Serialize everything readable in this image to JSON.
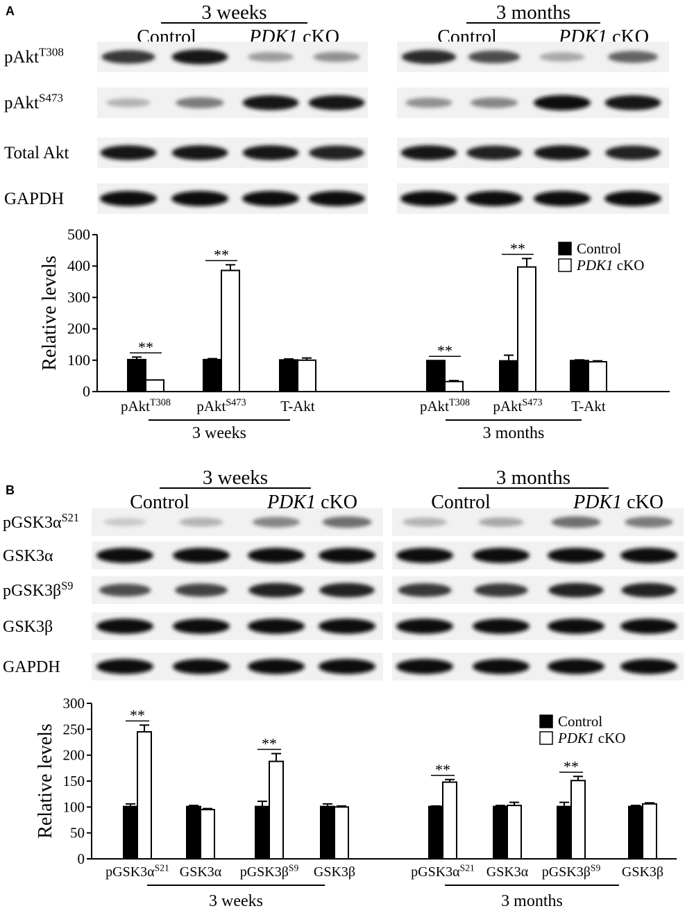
{
  "panels": [
    {
      "letter": "A",
      "blot": {
        "groups": [
          {
            "period": "3 weeks",
            "control_label": "Control",
            "cko_gene": "PDK1",
            "cko_suffix": " cKO"
          },
          {
            "period": "3 months",
            "control_label": "Control",
            "cko_gene": "PDK1",
            "cko_suffix": " cKO"
          }
        ],
        "rows": [
          {
            "base": "pAkt",
            "sup": "T308",
            "intensities": [
              [
                0.8,
                0.95,
                0.35,
                0.4
              ],
              [
                0.85,
                0.7,
                0.3,
                0.6
              ]
            ]
          },
          {
            "base": "pAkt",
            "sup": "S473",
            "intensities": [
              [
                0.25,
                0.5,
                0.95,
                0.95
              ],
              [
                0.4,
                0.45,
                1.0,
                0.95
              ]
            ]
          },
          {
            "base": "Total Akt",
            "sup": "",
            "intensities": [
              [
                0.95,
                0.95,
                0.95,
                0.9
              ],
              [
                0.95,
                0.9,
                0.95,
                0.9
              ]
            ]
          },
          {
            "base": "GAPDH",
            "sup": "",
            "intensities": [
              [
                1.0,
                1.0,
                1.0,
                1.0
              ],
              [
                1.0,
                1.0,
                1.0,
                1.0
              ]
            ]
          }
        ]
      },
      "chart_data": {
        "type": "bar",
        "ylabel": "Relative levels",
        "ylim": [
          0,
          500
        ],
        "yticks": [
          0,
          100,
          200,
          300,
          400,
          500
        ],
        "legend": {
          "position": "top-right",
          "control": "Control",
          "cko_gene": "PDK1",
          "cko_suffix": " cKO"
        },
        "groups": [
          {
            "label": "3 weeks",
            "categories": [
              {
                "base": "pAkt",
                "sup": "T308",
                "control": 102,
                "control_err": 8,
                "cko": 37,
                "cko_err": 0,
                "sig": "**"
              },
              {
                "base": "pAkt",
                "sup": "S473",
                "control": 102,
                "control_err": 3,
                "cko": 386,
                "cko_err": 18,
                "sig": "**"
              },
              {
                "base": "T-Akt",
                "sup": "",
                "control": 101,
                "control_err": 3,
                "cko": 100,
                "cko_err": 7,
                "sig": ""
              }
            ]
          },
          {
            "label": "3 months",
            "categories": [
              {
                "base": "pAkt",
                "sup": "T308",
                "control": 99,
                "control_err": 0,
                "cko": 32,
                "cko_err": 3,
                "sig": "**"
              },
              {
                "base": "pAkt",
                "sup": "S473",
                "control": 98,
                "control_err": 18,
                "cko": 397,
                "cko_err": 27,
                "sig": "**"
              },
              {
                "base": "T-Akt",
                "sup": "",
                "control": 99,
                "control_err": 2,
                "cko": 95,
                "cko_err": 3,
                "sig": ""
              }
            ]
          }
        ]
      }
    },
    {
      "letter": "B",
      "blot": {
        "groups": [
          {
            "period": "3 weeks",
            "control_label": "Control",
            "cko_gene": "PDK1",
            "cko_suffix": " cKO"
          },
          {
            "period": "3 months",
            "control_label": "Control",
            "cko_gene": "PDK1",
            "cko_suffix": " cKO"
          }
        ],
        "rows": [
          {
            "base": "pGSK3α",
            "sup": "S21",
            "intensities": [
              [
                0.15,
                0.25,
                0.45,
                0.55
              ],
              [
                0.25,
                0.3,
                0.55,
                0.5
              ]
            ]
          },
          {
            "base": "GSK3α",
            "sup": "",
            "intensities": [
              [
                1.0,
                1.0,
                1.0,
                1.0
              ],
              [
                1.0,
                1.0,
                1.0,
                1.0
              ]
            ]
          },
          {
            "base": "pGSK3β",
            "sup": "S9",
            "intensities": [
              [
                0.7,
                0.75,
                0.9,
                0.9
              ],
              [
                0.8,
                0.8,
                0.9,
                0.9
              ]
            ]
          },
          {
            "base": "GSK3β",
            "sup": "",
            "intensities": [
              [
                1.0,
                1.0,
                1.0,
                1.0
              ],
              [
                1.0,
                1.0,
                1.0,
                1.0
              ]
            ]
          },
          {
            "base": "GAPDH",
            "sup": "",
            "intensities": [
              [
                1.0,
                1.0,
                1.0,
                1.0
              ],
              [
                1.0,
                1.0,
                1.0,
                1.0
              ]
            ]
          }
        ]
      },
      "chart_data": {
        "type": "bar",
        "ylabel": "Relative levels",
        "ylim": [
          0,
          300
        ],
        "yticks": [
          0,
          50,
          100,
          150,
          200,
          250,
          300
        ],
        "legend": {
          "position": "top-right",
          "control": "Control",
          "cko_gene": "PDK1",
          "cko_suffix": " cKO"
        },
        "groups": [
          {
            "label": "3 weeks",
            "categories": [
              {
                "base": "pGSK3α",
                "sup": "S21",
                "control": 101,
                "control_err": 5,
                "cko": 245,
                "cko_err": 13,
                "sig": "**"
              },
              {
                "base": "GSK3α",
                "sup": "",
                "control": 101,
                "control_err": 2,
                "cko": 95,
                "cko_err": 2,
                "sig": ""
              },
              {
                "base": "pGSK3β",
                "sup": "S9",
                "control": 101,
                "control_err": 10,
                "cko": 188,
                "cko_err": 15,
                "sig": "**"
              },
              {
                "base": "GSK3β",
                "sup": "",
                "control": 101,
                "control_err": 5,
                "cko": 100,
                "cko_err": 2,
                "sig": ""
              }
            ]
          },
          {
            "label": "3 months",
            "categories": [
              {
                "base": "pGSK3α",
                "sup": "S21",
                "control": 101,
                "control_err": 1,
                "cko": 148,
                "cko_err": 5,
                "sig": "**"
              },
              {
                "base": "GSK3α",
                "sup": "",
                "control": 101,
                "control_err": 2,
                "cko": 103,
                "cko_err": 6,
                "sig": ""
              },
              {
                "base": "pGSK3β",
                "sup": "S9",
                "control": 101,
                "control_err": 8,
                "cko": 151,
                "cko_err": 8,
                "sig": "**"
              },
              {
                "base": "GSK3β",
                "sup": "",
                "control": 101,
                "control_err": 2,
                "cko": 106,
                "cko_err": 2,
                "sig": ""
              }
            ]
          }
        ]
      }
    }
  ]
}
